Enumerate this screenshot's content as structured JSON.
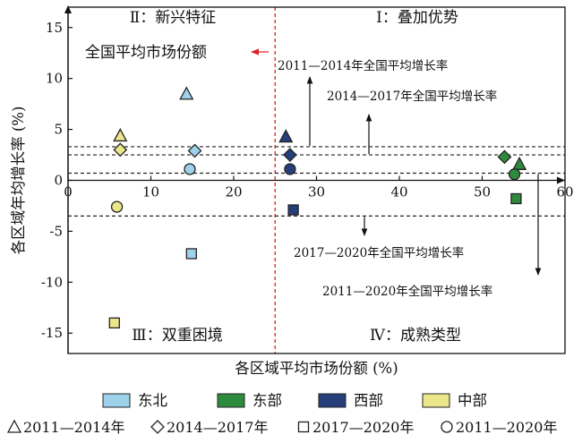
{
  "chart_data": {
    "type": "scatter",
    "xlabel": "各区域平均市场份额 (%)",
    "ylabel": "各区域年均增长率 (%)",
    "xlim": [
      0,
      60
    ],
    "ylim": [
      -17,
      17
    ],
    "x_ticks": [
      0,
      10,
      20,
      30,
      40,
      50,
      60
    ],
    "y_ticks": [
      -15,
      -10,
      -5,
      0,
      5,
      10,
      15
    ],
    "quadrants": {
      "q1": "Ⅰ：叠加优势",
      "q2": "Ⅱ：新兴特征",
      "q3": "Ⅲ：双重困境",
      "q4": "Ⅳ：成熟类型"
    },
    "reference_lines": {
      "national_share": {
        "x": 25,
        "label": "全国平均市场份额"
      },
      "growth": [
        {
          "y": 3.3,
          "label": "2011—2014年全国平均增长率"
        },
        {
          "y": 2.5,
          "label": "2014—2017年全国平均增长率"
        },
        {
          "y": -3.5,
          "label": "2017—2020年全国平均增长率"
        },
        {
          "y": 0.7,
          "label": "2011—2020年全国平均增长率"
        }
      ]
    },
    "legend_colors": [
      {
        "name": "东北",
        "color": "#9dd2ea"
      },
      {
        "name": "东部",
        "color": "#2e8b3d"
      },
      {
        "name": "西部",
        "color": "#263f7a"
      },
      {
        "name": "中部",
        "color": "#ece68a"
      }
    ],
    "legend_shapes": [
      {
        "shape": "triangle",
        "symbol": "△",
        "label": "2011—2014年"
      },
      {
        "shape": "diamond",
        "symbol": "◇",
        "label": "2014—2017年"
      },
      {
        "shape": "square",
        "symbol": "□",
        "label": "2017—2020年"
      },
      {
        "shape": "circle",
        "symbol": "○",
        "label": "2011—2020年"
      }
    ],
    "series": [
      {
        "name": "东北",
        "color": "#9dd2ea",
        "points": [
          {
            "period": "2011—2014年",
            "shape": "triangle",
            "x": 14.3,
            "y": 8.5
          },
          {
            "period": "2014—2017年",
            "shape": "diamond",
            "x": 15.3,
            "y": 2.9
          },
          {
            "period": "2017—2020年",
            "shape": "square",
            "x": 14.9,
            "y": -7.2
          },
          {
            "period": "2011—2020年",
            "shape": "circle",
            "x": 14.7,
            "y": 1.1
          }
        ]
      },
      {
        "name": "东部",
        "color": "#2e8b3d",
        "points": [
          {
            "period": "2011—2014年",
            "shape": "triangle",
            "x": 54.5,
            "y": 1.6
          },
          {
            "period": "2014—2017年",
            "shape": "diamond",
            "x": 52.7,
            "y": 2.3
          },
          {
            "period": "2017—2020年",
            "shape": "square",
            "x": 54.1,
            "y": -1.8
          },
          {
            "period": "2011—2020年",
            "shape": "circle",
            "x": 53.9,
            "y": 0.6
          }
        ]
      },
      {
        "name": "西部",
        "color": "#263f7a",
        "points": [
          {
            "period": "2011—2014年",
            "shape": "triangle",
            "x": 26.3,
            "y": 4.3
          },
          {
            "period": "2014—2017年",
            "shape": "diamond",
            "x": 26.8,
            "y": 2.5
          },
          {
            "period": "2017—2020年",
            "shape": "square",
            "x": 27.2,
            "y": -2.9
          },
          {
            "period": "2011—2020年",
            "shape": "circle",
            "x": 26.8,
            "y": 1.1
          }
        ]
      },
      {
        "name": "中部",
        "color": "#ece68a",
        "points": [
          {
            "period": "2011—2014年",
            "shape": "triangle",
            "x": 6.3,
            "y": 4.4
          },
          {
            "period": "2014—2017年",
            "shape": "diamond",
            "x": 6.3,
            "y": 3.0
          },
          {
            "period": "2017—2020年",
            "shape": "square",
            "x": 5.6,
            "y": -14.0
          },
          {
            "period": "2011—2020年",
            "shape": "circle",
            "x": 5.9,
            "y": -2.6
          }
        ]
      }
    ]
  }
}
